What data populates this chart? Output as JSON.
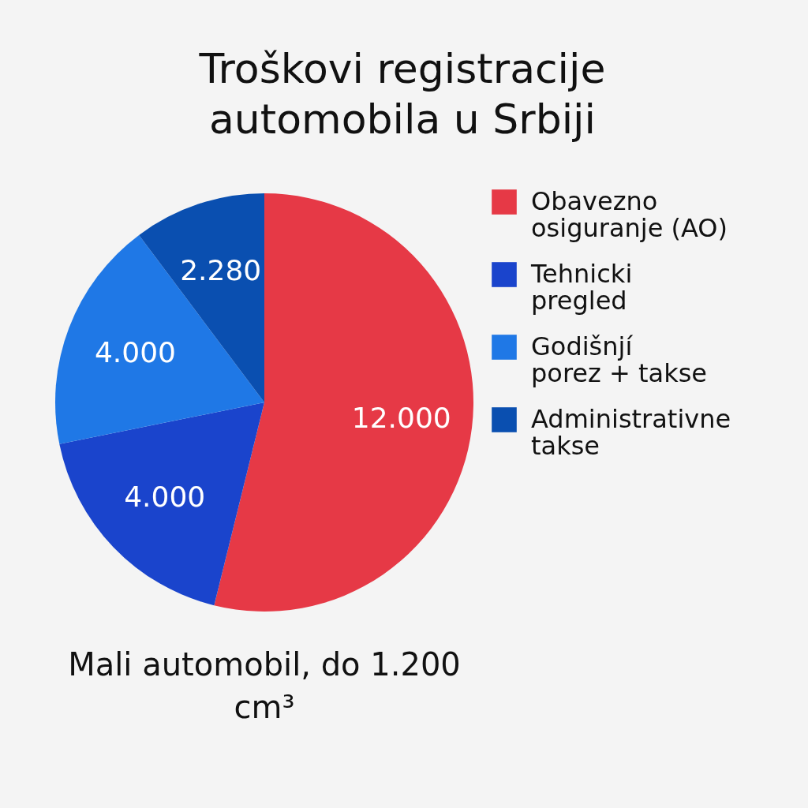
{
  "chart_data": {
    "type": "pie",
    "title": "Troškovi registracije automobila u Srbiji",
    "subtitle": "Mali automobil, do 1.200 cm³",
    "categories": [
      "Obavezno osiguranje (AO)",
      "Tehnicki pregled",
      "Godišnjí porez + takse",
      "Administrativne takse"
    ],
    "values": [
      12000,
      4000,
      4000,
      2280
    ],
    "value_labels": [
      "12.000",
      "4.000",
      "4.000",
      "2.280"
    ],
    "colors": [
      "#e63946",
      "#1a44cc",
      "#1f78e6",
      "#0a4fb0"
    ],
    "legend": "right"
  }
}
